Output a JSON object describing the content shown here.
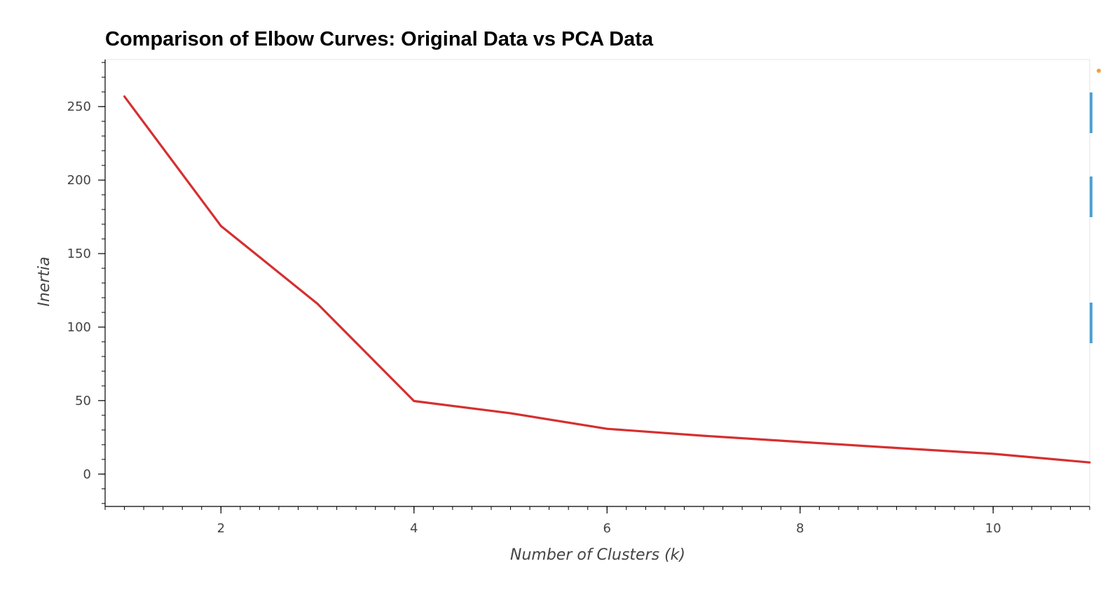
{
  "chart_data": {
    "type": "line",
    "title": "Comparison of Elbow Curves: Original Data vs PCA Data",
    "xlabel": "Number of Clusters (k)",
    "ylabel": "Inertia",
    "xlim": [
      0.8,
      11
    ],
    "ylim": [
      -22,
      282
    ],
    "x_ticks": [
      2,
      4,
      6,
      8,
      10
    ],
    "y_ticks": [
      0,
      50,
      100,
      150,
      200,
      250
    ],
    "grid": false,
    "series": [
      {
        "color": "#d62f2f",
        "x": [
          1,
          2,
          3,
          4,
          5,
          6,
          7,
          8,
          9,
          10,
          11
        ],
        "y": [
          256.9,
          168.8,
          115.9,
          49.7,
          41.4,
          30.8,
          26.1,
          21.9,
          17.8,
          13.8,
          7.9
        ]
      }
    ],
    "legend_color_swatches": [
      "#4fa3d1",
      "#4fa3d1",
      "#4fa3d1"
    ]
  }
}
